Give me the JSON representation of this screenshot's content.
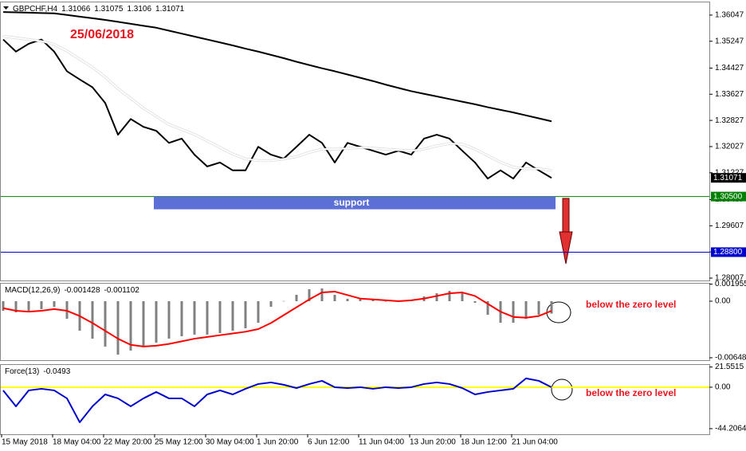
{
  "chart_data": [
    {
      "type": "line",
      "title": "GBPCHF,H4",
      "quote": [
        1.31066,
        1.31075,
        1.3106,
        1.31071
      ],
      "annotation": "25/06/2018",
      "zone_label": "support",
      "last": 1.31071,
      "categories": [
        "15 May 2018",
        null,
        null,
        null,
        "18 May 04:00",
        null,
        null,
        null,
        "22 May 20:00",
        null,
        null,
        null,
        "25 May 12:00",
        null,
        null,
        null,
        "30 May 04:00",
        null,
        null,
        null,
        "1 Jun 20:00",
        null,
        null,
        null,
        "6 Jun 12:00",
        null,
        null,
        null,
        "11 Jun 04:00",
        null,
        null,
        null,
        "13 Jun 20:00",
        null,
        null,
        null,
        "18 Jun 12:00",
        null,
        null,
        null,
        "21 Jun 04:00",
        null,
        null,
        null
      ],
      "series": [
        {
          "color": "#000000",
          "values": [
            1.353,
            1.3493,
            1.3517,
            1.353,
            1.3493,
            1.3433,
            1.3408,
            1.3384,
            1.3336,
            1.3239,
            1.3287,
            1.3263,
            1.3251,
            1.3214,
            1.3227,
            1.3178,
            1.3142,
            1.3154,
            1.313,
            1.313,
            1.3202,
            1.3178,
            1.3166,
            1.3202,
            1.3239,
            1.3214,
            1.3154,
            1.3214,
            1.3202,
            1.319,
            1.3178,
            1.319,
            1.3178,
            1.3227,
            1.3239,
            1.3227,
            1.319,
            1.3154,
            1.3105,
            1.313,
            1.3105,
            1.3154,
            1.313,
            1.3107
          ]
        },
        {
          "color": "#ffffff",
          "values": [
            1.354,
            1.3535,
            1.353,
            1.3525,
            1.3515,
            1.3495,
            1.347,
            1.3445,
            1.3415,
            1.338,
            1.335,
            1.332,
            1.3295,
            1.327,
            1.3255,
            1.324,
            1.322,
            1.32,
            1.318,
            1.3165,
            1.316,
            1.316,
            1.3165,
            1.3172,
            1.3185,
            1.3195,
            1.3195,
            1.3197,
            1.32,
            1.3198,
            1.3195,
            1.3192,
            1.319,
            1.3195,
            1.3205,
            1.3212,
            1.321,
            1.3195,
            1.3175,
            1.3155,
            1.314,
            1.3135,
            1.3135,
            1.313
          ]
        },
        {
          "color": "#000000",
          "values": [
            1.3614,
            1.3613,
            1.3612,
            1.3611,
            1.361,
            1.3605,
            1.36,
            1.3595,
            1.359,
            1.3584,
            1.3578,
            1.3572,
            1.3566,
            1.3557,
            1.3548,
            1.3539,
            1.353,
            1.3521,
            1.3512,
            1.3502,
            1.3493,
            1.3483,
            1.3473,
            1.3462,
            1.3452,
            1.3442,
            1.3433,
            1.3423,
            1.3413,
            1.3403,
            1.3392,
            1.3382,
            1.3372,
            1.3364,
            1.3356,
            1.3348,
            1.334,
            1.3332,
            1.3323,
            1.3315,
            1.3307,
            1.3298,
            1.3289,
            1.328
          ]
        }
      ],
      "levels": [
        {
          "value": 1.305,
          "label": "1.30500",
          "color": "#008000"
        },
        {
          "value": 1.288,
          "label": "1.28800",
          "color": "#0000cd"
        }
      ],
      "ylim": [
        1.27934,
        1.36459
      ],
      "yticks": [
        1.36047,
        1.35247,
        1.34427,
        1.33627,
        1.32827,
        1.32027,
        1.31227,
        1.30407,
        1.29607,
        1.28807,
        1.28007
      ]
    },
    {
      "type": "bar",
      "title": "MACD(12,26,9)",
      "quote": [
        -0.001428,
        -0.001102
      ],
      "annotation": "below the zero level",
      "color": "#808080",
      "values": [
        -0.0011,
        -0.00128,
        -0.00128,
        -0.00091,
        -0.00064,
        -0.00201,
        -0.00338,
        -0.00429,
        -0.0052,
        -0.00612,
        -0.00566,
        -0.0052,
        -0.00475,
        -0.00429,
        -0.00402,
        -0.00383,
        -0.00383,
        -0.00365,
        -0.00338,
        -0.0031,
        -0.00247,
        -0.00064,
        2e-05,
        0.00073,
        0.00137,
        0.00146,
        0.00073,
        0.00027,
        0.00037,
        0.00018,
        -5e-05,
        2e-05,
        9e-05,
        0.00055,
        0.00091,
        0.00119,
        0.00091,
        -0.00018,
        -0.00155,
        -0.00247,
        -0.00247,
        -0.00201,
        -0.00155,
        -0.001428
      ],
      "series": [
        {
          "color": "#ff0000",
          "values": [
            -0.0008,
            -0.0011,
            -0.0012,
            -0.0011,
            -0.0009,
            -0.0011,
            -0.0017,
            -0.0025,
            -0.0034,
            -0.0043,
            -0.005,
            -0.0052,
            -0.0051,
            -0.0049,
            -0.0046,
            -0.0043,
            -0.0041,
            -0.0039,
            -0.0037,
            -0.0035,
            -0.0032,
            -0.0025,
            -0.0016,
            -0.0007,
            0.0002,
            0.001,
            0.0011,
            0.0007,
            0.0003,
            0.0002,
            0.0001,
            0.0,
            0.0001,
            0.0003,
            0.0006,
            0.0009,
            0.001,
            0.0006,
            -0.0003,
            -0.0012,
            -0.0018,
            -0.0019,
            -0.0017,
            -0.001102
          ]
        }
      ],
      "ylim": [
        -0.00676,
        0.0021
      ],
      "yticks": [
        0.001955,
        {
          "value": 0,
          "label": "0.00"
        },
        -0.006482
      ]
    },
    {
      "type": "line",
      "title": "Force(13)",
      "quote": [
        -0.0493
      ],
      "annotation": "below the zero level",
      "zero_line_color": "#ffff00",
      "series": [
        {
          "color": "#0000cd",
          "values": [
            -3.4,
            -20.4,
            -3.4,
            -1.7,
            -3.4,
            -11.9,
            -37.4,
            -20.4,
            -7.7,
            -11.9,
            -20.4,
            -11.9,
            -5.1,
            -11.9,
            -11.9,
            -20.4,
            -7.7,
            -3.4,
            -7.7,
            -1.7,
            3.4,
            5.1,
            2.6,
            -0.9,
            3.4,
            6.8,
            0,
            -0.9,
            0,
            -1.7,
            0,
            -0.9,
            0,
            3.4,
            5.1,
            3.4,
            -0.9,
            -7.7,
            -5.1,
            -3.4,
            -1.7,
            9.4,
            6.8,
            -0.0493
          ]
        }
      ],
      "ylim": [
        -50.2,
        24.6
      ],
      "yticks": [
        21.5515,
        {
          "value": 0,
          "label": "0.00"
        },
        -44.2064
      ]
    }
  ]
}
